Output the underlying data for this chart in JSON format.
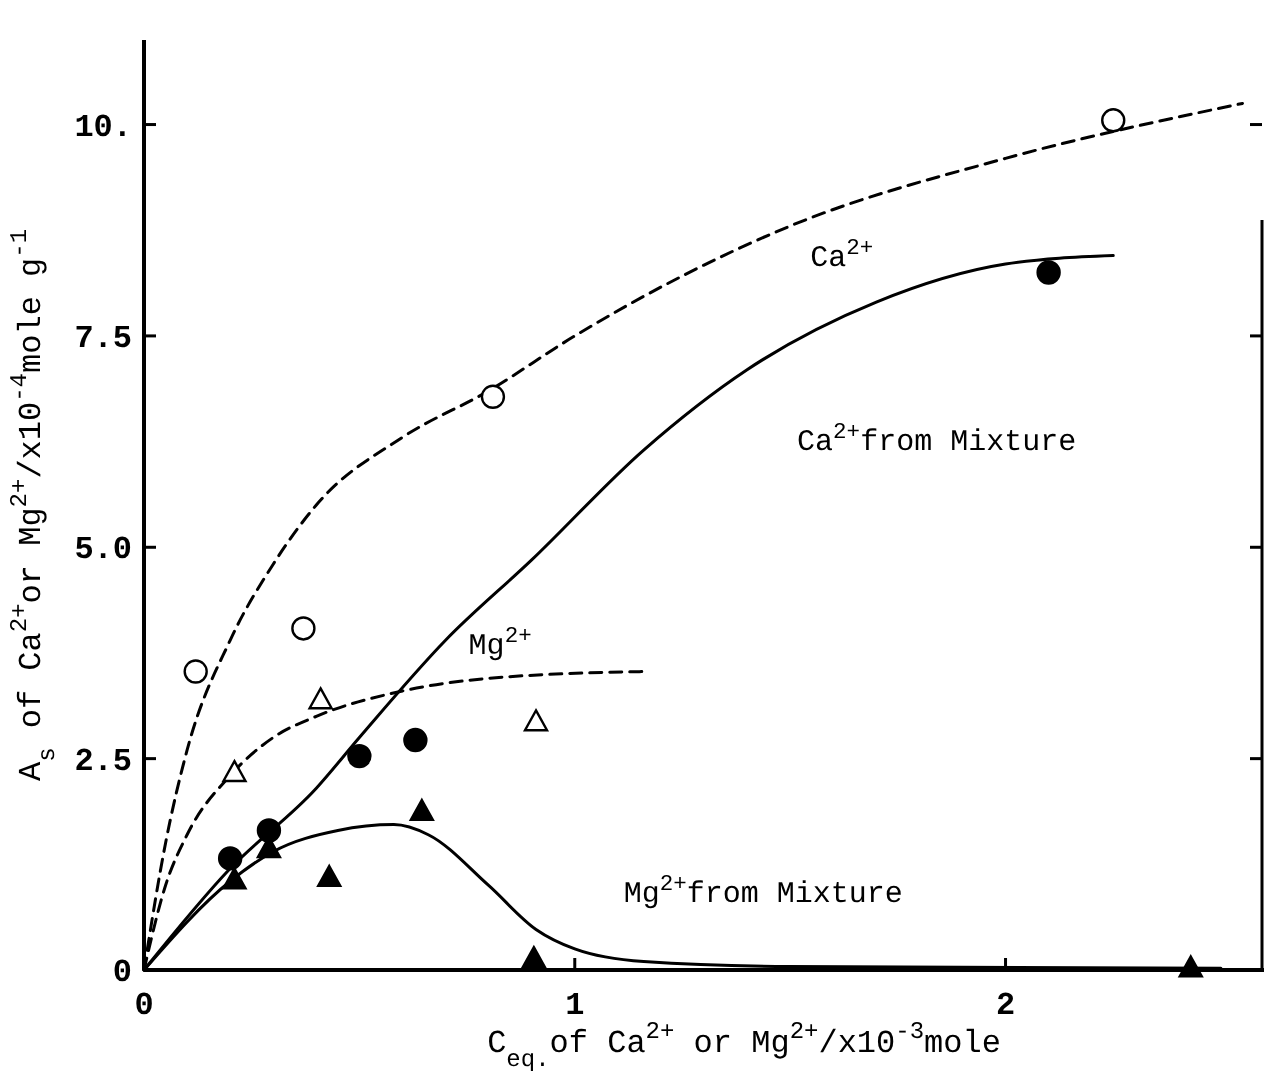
{
  "chart_data": {
    "type": "scatter",
    "xlabel": "C$_{eq.}$of Ca$^{2+}$ or Mg$^{2+}$/x10$^{-3}$mole",
    "ylabel": "A$_{s}$ of Ca$^{2+}$or Mg$^{2+}$/x10$^{-4}$mole g$^{-1}$",
    "xlim": [
      0,
      2.6
    ],
    "xticks": [
      0,
      1,
      2
    ],
    "ylim": [
      0,
      11
    ],
    "yticks": [
      0,
      2.5,
      {
        "value": 5,
        "label": "5.0"
      },
      7.5,
      {
        "value": 10,
        "label": "10."
      }
    ],
    "grid": false,
    "series": [
      {
        "type": "line",
        "name": "Ca$^{2+}$",
        "color": "#000000",
        "line_style": "dashed",
        "marker": "none",
        "x": [
          0,
          0.05,
          0.1,
          0.2,
          0.3,
          0.4,
          0.6,
          0.8,
          1.0,
          1.5,
          2.0,
          2.55
        ],
        "values": [
          0,
          1.5,
          2.6,
          3.9,
          4.8,
          5.5,
          6.3,
          6.85,
          7.5,
          8.8,
          9.6,
          10.25
        ]
      },
      {
        "type": "line",
        "name": "Mg$^{2+}$",
        "color": "#000000",
        "line_style": "dashed",
        "marker": "none",
        "x": [
          0,
          0.05,
          0.1,
          0.2,
          0.3,
          0.4,
          0.6,
          0.8,
          1.16
        ],
        "values": [
          0,
          1.0,
          1.6,
          2.3,
          2.75,
          3.0,
          3.3,
          3.45,
          3.53
        ]
      },
      {
        "type": "line",
        "name": "Ca$^{2+}$from Mixture",
        "color": "#000000",
        "line_style": "solid",
        "marker": "none",
        "x": [
          0,
          0.2,
          0.4,
          0.5,
          0.7,
          0.9,
          1.16,
          1.4,
          1.7,
          2.0,
          2.25
        ],
        "values": [
          0,
          1.2,
          2.15,
          2.75,
          3.9,
          4.85,
          6.15,
          7.1,
          7.9,
          8.35,
          8.45
        ]
      },
      {
        "type": "line",
        "name": "Mg$^{2+}$from Mixture",
        "color": "#000000",
        "line_style": "solid",
        "marker": "none",
        "x": [
          0,
          0.2,
          0.3,
          0.45,
          0.58,
          0.66,
          0.8,
          0.91,
          1.0,
          1.16,
          1.5,
          2.5
        ],
        "values": [
          0,
          1.05,
          1.4,
          1.65,
          1.72,
          1.6,
          1.0,
          0.48,
          0.25,
          0.1,
          0.04,
          0.02
        ]
      },
      {
        "color": "#000000",
        "marker": "circle",
        "x": [
          0.12,
          0.37,
          0.81,
          2.25
        ],
        "values": [
          3.53,
          4.04,
          6.78,
          10.05
        ]
      },
      {
        "color": "#000000",
        "marker": "triangle",
        "x": [
          0.21,
          0.41,
          0.91
        ],
        "values": [
          2.34,
          3.2,
          2.94
        ]
      },
      {
        "color": "#000000",
        "marker": "circle",
        "x": [
          0.2,
          0.29,
          0.5,
          0.63,
          2.1
        ],
        "values": [
          1.32,
          1.65,
          2.53,
          2.72,
          8.25
        ]
      },
      {
        "color": "#000000",
        "marker": "triangle",
        "x": [
          0.21,
          0.29,
          0.43,
          0.645,
          0.905,
          2.43
        ],
        "values": [
          1.07,
          1.44,
          1.1,
          1.88,
          0.14,
          0.03
        ]
      }
    ]
  }
}
